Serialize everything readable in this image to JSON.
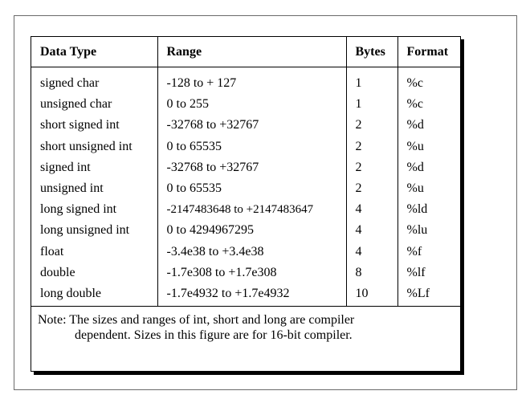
{
  "table": {
    "headers": [
      "Data Type",
      "Range",
      "Bytes",
      "Format"
    ],
    "rows": [
      [
        "signed char",
        "-128 to + 127",
        "1",
        "%c"
      ],
      [
        "unsigned char",
        "0 to 255",
        "1",
        "%c"
      ],
      [
        "short signed int",
        "-32768 to +32767",
        "2",
        "%d"
      ],
      [
        "short unsigned int",
        "0 to 65535",
        "2",
        "%u"
      ],
      [
        "signed int",
        "-32768 to +32767",
        "2",
        "%d"
      ],
      [
        "unsigned int",
        "0 to 65535",
        "2",
        "%u"
      ],
      [
        "long signed int",
        "-2147483648 to +2147483647",
        "4",
        "%ld"
      ],
      [
        "long unsigned int",
        "0 to 4294967295",
        "4",
        "%lu"
      ],
      [
        "float",
        "-3.4e38 to +3.4e38",
        "4",
        "%f"
      ],
      [
        "double",
        "-1.7e308 to +1.7e308",
        "8",
        "%lf"
      ],
      [
        "long double",
        "-1.7e4932 to +1.7e4932",
        "10",
        "%Lf"
      ]
    ]
  },
  "note": {
    "line1": "Note: The sizes and ranges of int, short and long are compiler",
    "line2": "dependent. Sizes in this figure are for 16-bit compiler."
  }
}
